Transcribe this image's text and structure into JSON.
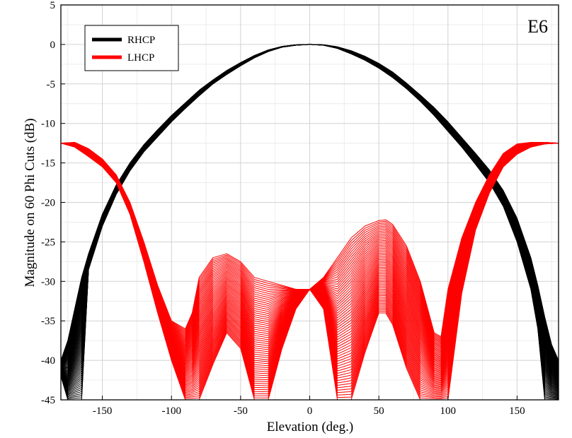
{
  "chart_data": {
    "type": "line",
    "annotation": "E6",
    "xlabel": "Elevation (deg.)",
    "ylabel": "Magnitude on 60 Phi Cuts (dB)",
    "xlim": [
      -180,
      180
    ],
    "ylim": [
      -45,
      5
    ],
    "xticks": [
      -150,
      -100,
      -50,
      0,
      50,
      100,
      150
    ],
    "yticks": [
      5,
      0,
      -5,
      -10,
      -15,
      -20,
      -25,
      -30,
      -35,
      -40,
      -45
    ],
    "grid": true,
    "legend_position": "top-left",
    "num_cuts": 60,
    "series": [
      {
        "name": "RHCP",
        "color": "#000000",
        "cut_count": 60,
        "envelope_x": [
          -180,
          -175,
          -170,
          -165,
          -160,
          -150,
          -140,
          -130,
          -120,
          -110,
          -100,
          -90,
          -80,
          -70,
          -60,
          -50,
          -40,
          -30,
          -20,
          -10,
          0,
          10,
          20,
          30,
          40,
          50,
          60,
          70,
          80,
          90,
          100,
          110,
          120,
          130,
          140,
          150,
          160,
          165,
          170,
          175,
          180
        ],
        "envelope_upper": [
          -40,
          -37.5,
          -33.5,
          -29.5,
          -26.5,
          -21.5,
          -17.8,
          -15.0,
          -12.7,
          -10.8,
          -9.0,
          -7.4,
          -5.8,
          -4.5,
          -3.3,
          -2.3,
          -1.4,
          -0.7,
          -0.25,
          -0.05,
          0.0,
          -0.05,
          -0.3,
          -0.8,
          -1.5,
          -2.4,
          -3.5,
          -4.9,
          -6.4,
          -8.0,
          -9.8,
          -11.8,
          -13.8,
          -15.9,
          -18.5,
          -22.0,
          -27.0,
          -30.5,
          -34.5,
          -38.0,
          -40.0
        ],
        "envelope_lower": [
          -42,
          -45,
          -45,
          -45,
          -28.5,
          -23.0,
          -19.0,
          -16.0,
          -13.6,
          -11.7,
          -9.8,
          -8.1,
          -6.5,
          -5.0,
          -3.8,
          -2.7,
          -1.7,
          -0.9,
          -0.35,
          -0.1,
          0.0,
          -0.1,
          -0.5,
          -1.2,
          -2.0,
          -3.0,
          -4.2,
          -5.6,
          -7.2,
          -9.0,
          -11.0,
          -13.0,
          -15.2,
          -17.5,
          -20.5,
          -25.0,
          -31.0,
          -36.0,
          -45.0,
          -45.0,
          -45.0
        ]
      },
      {
        "name": "LHCP",
        "color": "#ff0000",
        "cut_count": 60,
        "envelope_x": [
          -180,
          -170,
          -160,
          -150,
          -140,
          -130,
          -120,
          -110,
          -100,
          -90,
          -85,
          -80,
          -70,
          -60,
          -50,
          -40,
          -30,
          -20,
          -10,
          0,
          10,
          20,
          30,
          40,
          50,
          55,
          60,
          70,
          80,
          90,
          95,
          100,
          110,
          120,
          130,
          140,
          150,
          160,
          170,
          180
        ],
        "envelope_upper": [
          -12.5,
          -12.4,
          -13.2,
          -14.5,
          -16.5,
          -20.0,
          -25.0,
          -30.5,
          -35.0,
          -36.0,
          -34.0,
          -29.5,
          -27.0,
          -26.5,
          -27.5,
          -29.5,
          -30.0,
          -30.5,
          -31.0,
          -31.0,
          -29.5,
          -27.0,
          -24.5,
          -23.0,
          -22.3,
          -22.2,
          -22.8,
          -25.5,
          -30.0,
          -36.5,
          -37.0,
          -31.0,
          -24.5,
          -20.0,
          -16.5,
          -13.8,
          -12.6,
          -12.4,
          -12.4,
          -12.5
        ],
        "envelope_lower": [
          -12.5,
          -13.0,
          -14.2,
          -15.5,
          -17.5,
          -21.5,
          -27.5,
          -34.0,
          -40.0,
          -45.0,
          -45.0,
          -45.0,
          -40.5,
          -36.5,
          -38.5,
          -45.0,
          -45.0,
          -38.5,
          -33.5,
          -31.0,
          -33.5,
          -45.0,
          -45.0,
          -39.0,
          -34.0,
          -34.0,
          -35.5,
          -41.0,
          -45.0,
          -45.0,
          -45.0,
          -45.0,
          -31.5,
          -23.5,
          -18.8,
          -15.5,
          -13.9,
          -13.0,
          -12.6,
          -12.5
        ]
      }
    ]
  }
}
